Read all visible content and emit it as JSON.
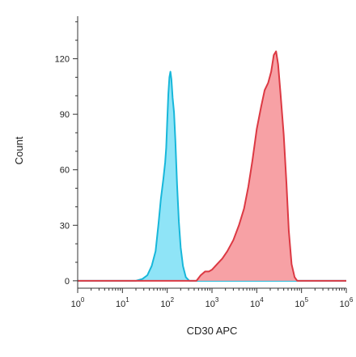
{
  "chart_data": {
    "type": "area",
    "xlabel": "CD30 APC",
    "ylabel": "Count",
    "x_scale": "log",
    "xlim": [
      1,
      1000000
    ],
    "ylim": [
      -4,
      143
    ],
    "y_ticks": [
      0,
      30,
      60,
      90,
      120
    ],
    "y_tick_labels": [
      "0",
      "30",
      "60",
      "90",
      "120"
    ],
    "x_tick_labels": [
      {
        "base": "10",
        "exp": "0"
      },
      {
        "base": "10",
        "exp": "1"
      },
      {
        "base": "10",
        "exp": "2"
      },
      {
        "base": "10",
        "exp": "3"
      },
      {
        "base": "10",
        "exp": "4"
      },
      {
        "base": "10",
        "exp": "5"
      },
      {
        "base": "10",
        "exp": "6"
      }
    ],
    "series": [
      {
        "fill": "#8fe4f7",
        "stroke": "#17b7da",
        "points": [
          [
            1,
            0
          ],
          [
            20,
            0
          ],
          [
            28,
            1
          ],
          [
            36,
            3
          ],
          [
            45,
            8
          ],
          [
            55,
            16
          ],
          [
            64,
            31
          ],
          [
            72,
            44
          ],
          [
            82,
            55
          ],
          [
            90,
            64
          ],
          [
            95,
            72
          ],
          [
            100,
            86
          ],
          [
            106,
            101
          ],
          [
            112,
            110
          ],
          [
            118,
            113
          ],
          [
            124,
            109
          ],
          [
            132,
            99
          ],
          [
            142,
            91
          ],
          [
            152,
            76
          ],
          [
            166,
            52
          ],
          [
            182,
            32
          ],
          [
            200,
            18
          ],
          [
            225,
            8
          ],
          [
            260,
            2
          ],
          [
            310,
            0
          ],
          [
            1000000,
            0
          ]
        ]
      },
      {
        "fill": "#f7a1a5",
        "stroke": "#dc3943",
        "points": [
          [
            1,
            0
          ],
          [
            450,
            0
          ],
          [
            560,
            3
          ],
          [
            700,
            5
          ],
          [
            850,
            5
          ],
          [
            1000,
            6
          ],
          [
            1300,
            9
          ],
          [
            1700,
            12
          ],
          [
            2200,
            16
          ],
          [
            3000,
            22
          ],
          [
            4000,
            30
          ],
          [
            5200,
            39
          ],
          [
            6500,
            51
          ],
          [
            8000,
            65
          ],
          [
            10000,
            82
          ],
          [
            12500,
            94
          ],
          [
            15000,
            103
          ],
          [
            18000,
            107
          ],
          [
            21000,
            113
          ],
          [
            24000,
            122
          ],
          [
            27000,
            124
          ],
          [
            30000,
            117
          ],
          [
            34000,
            101
          ],
          [
            40000,
            79
          ],
          [
            46000,
            53
          ],
          [
            52000,
            27
          ],
          [
            60000,
            9
          ],
          [
            70000,
            2
          ],
          [
            80000,
            0
          ],
          [
            1000000,
            0
          ]
        ]
      }
    ]
  }
}
